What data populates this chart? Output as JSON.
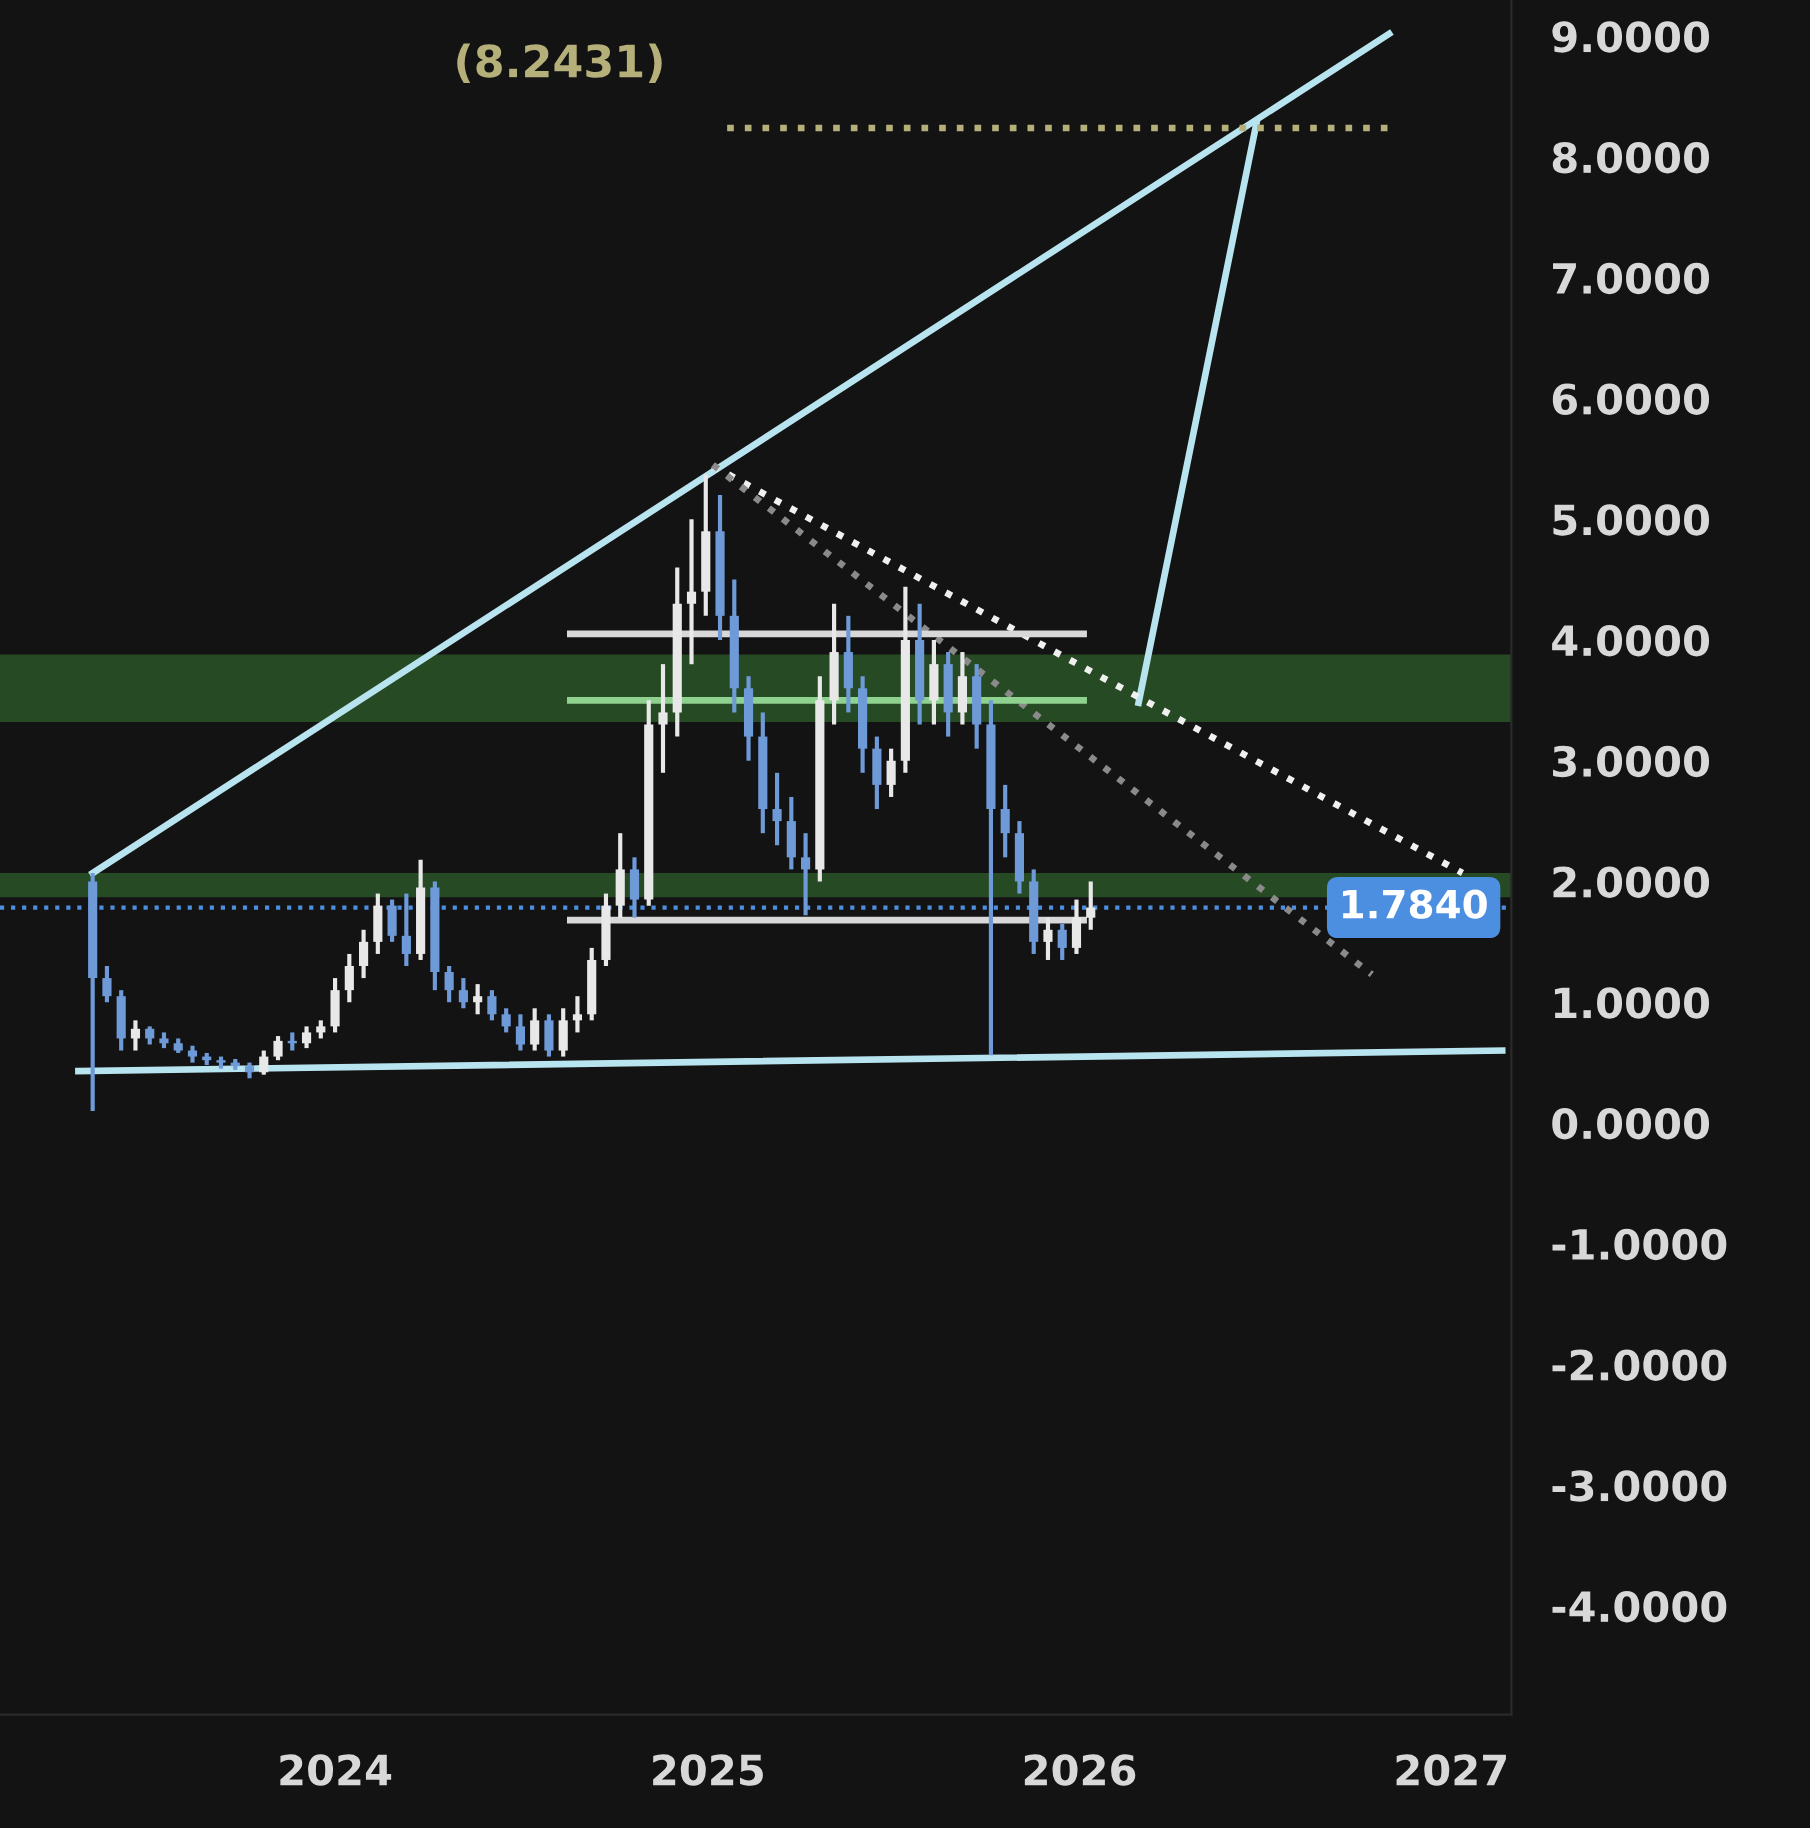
{
  "chart_data": {
    "type": "candlestick",
    "xlim": [
      "2023-02-06",
      "2027-03-01"
    ],
    "xticks": [
      "2024",
      "2025",
      "2026",
      "2027"
    ],
    "ylim": [
      -4.9,
      9.3
    ],
    "yticks": [
      {
        "value": 9,
        "label": "9.0000"
      },
      {
        "value": 8,
        "label": "8.0000"
      },
      {
        "value": 7,
        "label": "7.0000"
      },
      {
        "value": 6,
        "label": "6.0000"
      },
      {
        "value": 5,
        "label": "5.0000"
      },
      {
        "value": 4,
        "label": "4.0000"
      },
      {
        "value": 3,
        "label": "3.0000"
      },
      {
        "value": 2,
        "label": "2.0000"
      },
      {
        "value": 1,
        "label": "1.0000"
      },
      {
        "value": 0,
        "label": "0.0000"
      },
      {
        "value": -1,
        "label": "-1.0000"
      },
      {
        "value": -2,
        "label": "-2.0000"
      },
      {
        "value": -3,
        "label": "-3.0000"
      },
      {
        "value": -4,
        "label": "-4.0000"
      }
    ],
    "grid": false,
    "legend": false,
    "marker": "none",
    "annotations": [
      "(8.2431)"
    ],
    "bands": [
      {
        "axis": "y",
        "from": 1.87,
        "to": 2.07,
        "color": "#2e5e2a"
      },
      {
        "axis": "y",
        "from": 3.32,
        "to": 3.88,
        "color": "#2e5e2a"
      }
    ],
    "ref_lines": [
      {
        "axis": "y",
        "value": 1.784,
        "label": "1.7840",
        "color": "#4c8fe0",
        "line_style": "dotted"
      }
    ],
    "series": [
      {
        "type": "line",
        "x": [
          "2023-05-08",
          "2026-11-01"
        ],
        "values": [
          2.07,
          9.02
        ],
        "color": "#b8e4f0",
        "line_style": "solid"
      },
      {
        "type": "line",
        "x": [
          "2023-04-24",
          "2027-02-20"
        ],
        "values": [
          0.43,
          0.6
        ],
        "color": "#b8e4f0",
        "line_style": "solid"
      },
      {
        "type": "line",
        "x": [
          "2026-02-28",
          "2026-06-24"
        ],
        "values": [
          3.48,
          8.29
        ],
        "color": "#b8e4f0",
        "line_style": "solid"
      },
      {
        "type": "line",
        "x": [
          "2025-01-06",
          "2027-01-12"
        ],
        "values": [
          5.44,
          2.07
        ],
        "color": "#f0f0f0",
        "line_style": "dotted"
      },
      {
        "type": "line",
        "x": [
          "2025-01-06",
          "2026-10-15"
        ],
        "values": [
          5.45,
          1.23
        ],
        "color": "#8a8a8a",
        "line_style": "dotted"
      },
      {
        "type": "line",
        "x": [
          "2025-01-20",
          "2026-11-01"
        ],
        "values": [
          8.24,
          8.24
        ],
        "color": "#b5b07a",
        "line_style": "dotted"
      },
      {
        "type": "line",
        "x": [
          "2024-08-19",
          "2026-01-05"
        ],
        "values": [
          4.05,
          4.05
        ],
        "color": "#d8d8d8",
        "line_style": "solid"
      },
      {
        "type": "line",
        "x": [
          "2024-08-19",
          "2026-01-05"
        ],
        "values": [
          1.68,
          1.68
        ],
        "color": "#d8d8d8",
        "line_style": "solid"
      },
      {
        "type": "line",
        "x": [
          "2024-08-19",
          "2026-01-05"
        ],
        "values": [
          3.5,
          3.5
        ],
        "color": "#8fd18f",
        "line_style": "solid"
      },
      {
        "x": [
          "2023-05-08",
          "2023-05-22",
          "2023-06-05",
          "2023-06-19",
          "2023-07-03",
          "2023-07-17",
          "2023-07-31",
          "2023-08-14",
          "2023-08-28",
          "2023-09-11",
          "2023-09-25",
          "2023-10-09",
          "2023-10-23",
          "2023-11-06",
          "2023-11-20",
          "2023-12-04",
          "2023-12-18",
          "2024-01-01",
          "2024-01-15",
          "2024-01-29",
          "2024-02-12",
          "2024-02-26",
          "2024-03-11",
          "2024-03-25",
          "2024-04-08",
          "2024-04-22",
          "2024-05-06",
          "2024-05-20",
          "2024-06-03",
          "2024-06-17",
          "2024-07-01",
          "2024-07-15",
          "2024-07-29",
          "2024-08-12",
          "2024-08-26",
          "2024-09-09",
          "2024-09-23",
          "2024-10-07",
          "2024-10-21",
          "2024-11-04",
          "2024-11-18",
          "2024-12-02",
          "2024-12-16",
          "2024-12-30",
          "2025-01-13",
          "2025-01-27",
          "2025-02-10",
          "2025-02-24",
          "2025-03-10",
          "2025-03-24",
          "2025-04-07",
          "2025-04-21",
          "2025-05-05",
          "2025-05-19",
          "2025-06-02",
          "2025-06-16",
          "2025-06-30",
          "2025-07-14",
          "2025-07-28",
          "2025-08-11",
          "2025-08-25",
          "2025-09-08",
          "2025-09-22",
          "2025-10-06",
          "2025-10-20",
          "2025-11-03",
          "2025-11-17",
          "2025-12-01",
          "2025-12-15",
          "2025-12-29",
          "2026-01-12"
        ],
        "ohlc": [
          [
            2.0,
            2.07,
            0.1,
            1.2
          ],
          [
            1.2,
            1.3,
            1.0,
            1.05
          ],
          [
            1.05,
            1.1,
            0.6,
            0.7
          ],
          [
            0.7,
            0.85,
            0.6,
            0.78
          ],
          [
            0.78,
            0.8,
            0.65,
            0.7
          ],
          [
            0.7,
            0.75,
            0.62,
            0.66
          ],
          [
            0.66,
            0.7,
            0.58,
            0.6
          ],
          [
            0.6,
            0.64,
            0.5,
            0.55
          ],
          [
            0.55,
            0.58,
            0.48,
            0.52
          ],
          [
            0.52,
            0.55,
            0.45,
            0.5
          ],
          [
            0.5,
            0.53,
            0.44,
            0.47
          ],
          [
            0.47,
            0.5,
            0.37,
            0.42
          ],
          [
            0.42,
            0.6,
            0.4,
            0.55
          ],
          [
            0.55,
            0.72,
            0.52,
            0.68
          ],
          [
            0.68,
            0.75,
            0.6,
            0.66
          ],
          [
            0.66,
            0.8,
            0.62,
            0.75
          ],
          [
            0.75,
            0.85,
            0.7,
            0.8
          ],
          [
            0.8,
            1.2,
            0.75,
            1.1
          ],
          [
            1.1,
            1.4,
            1.0,
            1.3
          ],
          [
            1.3,
            1.6,
            1.2,
            1.5
          ],
          [
            1.5,
            1.9,
            1.4,
            1.8
          ],
          [
            1.8,
            1.85,
            1.5,
            1.55
          ],
          [
            1.55,
            1.9,
            1.3,
            1.4
          ],
          [
            1.4,
            2.18,
            1.35,
            1.95
          ],
          [
            1.95,
            2.0,
            1.1,
            1.25
          ],
          [
            1.25,
            1.3,
            1.0,
            1.1
          ],
          [
            1.1,
            1.2,
            0.95,
            1.0
          ],
          [
            1.0,
            1.15,
            0.9,
            1.05
          ],
          [
            1.05,
            1.1,
            0.85,
            0.9
          ],
          [
            0.9,
            0.95,
            0.75,
            0.8
          ],
          [
            0.8,
            0.9,
            0.6,
            0.65
          ],
          [
            0.65,
            0.95,
            0.6,
            0.85
          ],
          [
            0.85,
            0.9,
            0.55,
            0.6
          ],
          [
            0.6,
            0.95,
            0.55,
            0.85
          ],
          [
            0.85,
            1.05,
            0.75,
            0.9
          ],
          [
            0.9,
            1.45,
            0.85,
            1.35
          ],
          [
            1.35,
            1.9,
            1.3,
            1.8
          ],
          [
            1.8,
            2.4,
            1.7,
            2.1
          ],
          [
            2.1,
            2.2,
            1.7,
            1.85
          ],
          [
            1.85,
            3.5,
            1.8,
            3.3
          ],
          [
            3.3,
            3.8,
            2.9,
            3.4
          ],
          [
            3.4,
            4.6,
            3.2,
            4.3
          ],
          [
            4.3,
            5.0,
            3.8,
            4.4
          ],
          [
            4.4,
            5.37,
            4.2,
            4.9
          ],
          [
            4.9,
            5.2,
            4.0,
            4.2
          ],
          [
            4.2,
            4.5,
            3.4,
            3.6
          ],
          [
            3.6,
            3.7,
            3.0,
            3.2
          ],
          [
            3.2,
            3.4,
            2.4,
            2.6
          ],
          [
            2.6,
            2.9,
            2.3,
            2.5
          ],
          [
            2.5,
            2.7,
            2.1,
            2.2
          ],
          [
            2.2,
            2.4,
            1.72,
            2.1
          ],
          [
            2.1,
            3.7,
            2.0,
            3.5
          ],
          [
            3.5,
            4.3,
            3.3,
            3.9
          ],
          [
            3.9,
            4.2,
            3.4,
            3.6
          ],
          [
            3.6,
            3.7,
            2.9,
            3.1
          ],
          [
            3.1,
            3.2,
            2.6,
            2.8
          ],
          [
            2.8,
            3.1,
            2.7,
            3.0
          ],
          [
            3.0,
            4.44,
            2.9,
            4.0
          ],
          [
            4.0,
            4.3,
            3.3,
            3.5
          ],
          [
            3.5,
            4.0,
            3.3,
            3.8
          ],
          [
            3.8,
            3.9,
            3.2,
            3.4
          ],
          [
            3.4,
            3.9,
            3.3,
            3.7
          ],
          [
            3.7,
            3.8,
            3.1,
            3.3
          ],
          [
            3.3,
            3.5,
            0.56,
            2.6
          ],
          [
            2.6,
            2.8,
            2.2,
            2.4
          ],
          [
            2.4,
            2.5,
            1.9,
            2.0
          ],
          [
            2.0,
            2.1,
            1.4,
            1.5
          ],
          [
            1.5,
            1.7,
            1.35,
            1.6
          ],
          [
            1.6,
            1.65,
            1.35,
            1.45
          ],
          [
            1.45,
            1.85,
            1.4,
            1.7
          ],
          [
            1.7,
            2.0,
            1.6,
            1.784
          ]
        ],
        "colors": [
          "#6f9ad8",
          "#6f9ad8",
          "#6f9ad8",
          "#e8e8e8",
          "#6f9ad8",
          "#6f9ad8",
          "#6f9ad8",
          "#6f9ad8",
          "#6f9ad8",
          "#6f9ad8",
          "#6f9ad8",
          "#6f9ad8",
          "#e8e8e8",
          "#e8e8e8",
          "#6f9ad8",
          "#e8e8e8",
          "#e8e8e8",
          "#e8e8e8",
          "#e8e8e8",
          "#e8e8e8",
          "#e8e8e8",
          "#6f9ad8",
          "#6f9ad8",
          "#e8e8e8",
          "#6f9ad8",
          "#6f9ad8",
          "#6f9ad8",
          "#e8e8e8",
          "#6f9ad8",
          "#6f9ad8",
          "#6f9ad8",
          "#e8e8e8",
          "#6f9ad8",
          "#e8e8e8",
          "#e8e8e8",
          "#e8e8e8",
          "#e8e8e8",
          "#e8e8e8",
          "#6f9ad8",
          "#e8e8e8",
          "#e8e8e8",
          "#e8e8e8",
          "#e8e8e8",
          "#e8e8e8",
          "#6f9ad8",
          "#6f9ad8",
          "#6f9ad8",
          "#6f9ad8",
          "#6f9ad8",
          "#6f9ad8",
          "#6f9ad8",
          "#e8e8e8",
          "#e8e8e8",
          "#6f9ad8",
          "#6f9ad8",
          "#6f9ad8",
          "#e8e8e8",
          "#e8e8e8",
          "#6f9ad8",
          "#e8e8e8",
          "#6f9ad8",
          "#e8e8e8",
          "#6f9ad8",
          "#6f9ad8",
          "#6f9ad8",
          "#6f9ad8",
          "#6f9ad8",
          "#e8e8e8",
          "#6f9ad8",
          "#e8e8e8",
          "#e8e8e8"
        ]
      }
    ]
  }
}
